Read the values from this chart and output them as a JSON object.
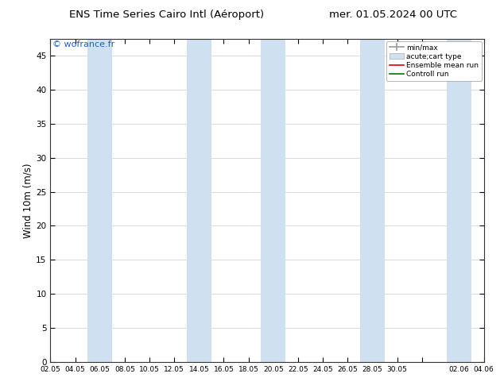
{
  "title_left": "ENS Time Series Cairo Intl (Aéroport)",
  "title_right": "mer. 01.05.2024 00 UTC",
  "ylabel": "Wind 10m (m/s)",
  "watermark": "© wofrance.fr",
  "ylim": [
    0,
    47.5
  ],
  "yticks": [
    0,
    5,
    10,
    15,
    20,
    25,
    30,
    35,
    40,
    45
  ],
  "background_color": "#ffffff",
  "plot_bg_color": "#ffffff",
  "shade_color": "#cfe0f0",
  "shade_alpha": 1.0,
  "x_tick_labels": [
    "02.05",
    "04.05",
    "06.05",
    "08.05",
    "10.05",
    "12.05",
    "14.05",
    "16.05",
    "18.05",
    "20.05",
    "22.05",
    "24.05",
    "26.05",
    "28.05",
    "30.05",
    "",
    "02.06",
    "04.06"
  ],
  "shade_bands": [
    [
      3,
      2
    ],
    [
      11,
      2
    ],
    [
      17,
      2
    ],
    [
      25,
      2
    ],
    [
      32,
      2
    ]
  ],
  "xlim": [
    0,
    35
  ]
}
